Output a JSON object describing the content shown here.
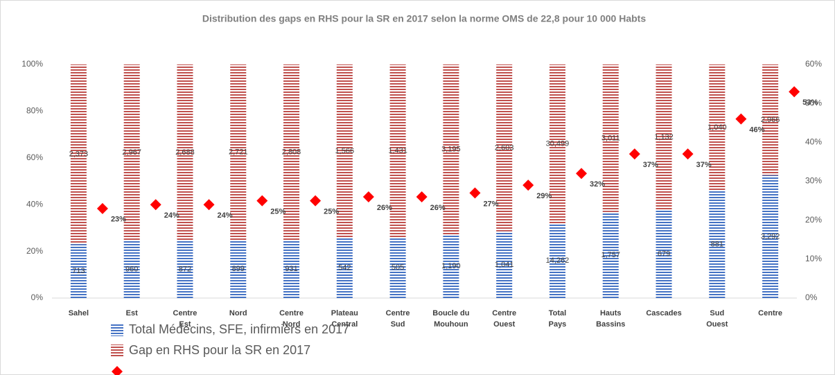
{
  "chart_data": {
    "type": "bar",
    "title": "Distribution des gaps en RHS pour la SR en 2017 selon la norme OMS de 22,8 pour 10 000 Habts",
    "categories": [
      "Sahel",
      "Est",
      "Centre Est",
      "Nord",
      "Centre Nord",
      "Plateau Central",
      "Centre Sud",
      "Boucle du Mouhoun",
      "Centre Ouest",
      "Total Pays",
      "Hauts Bassins",
      "Cascades",
      "Sud Ouest",
      "Centre"
    ],
    "series": [
      {
        "name": "Total Médecins, SFE, infirmiers en 2017",
        "color": "#4472c4",
        "values": [
          713,
          960,
          872,
          899,
          931,
          542,
          505,
          1190,
          1041,
          14262,
          1757,
          679,
          881,
          3292
        ],
        "value_labels": [
          "713",
          "960",
          "872",
          "899",
          "931",
          "542",
          "505",
          "1,190",
          "1,041",
          "14,262",
          "1,757",
          "679",
          "881",
          "3,292"
        ]
      },
      {
        "name": "Gap en RHS pour la SR en 2017",
        "color": "#c0504d",
        "values": [
          2373,
          2967,
          2688,
          2721,
          2808,
          1566,
          1431,
          3195,
          2603,
          30499,
          3011,
          1132,
          1040,
          2966
        ],
        "value_labels": [
          "2,373",
          "2,967",
          "2,688",
          "2,721",
          "2,808",
          "1,566",
          "1,431",
          "3,195",
          "2,603",
          "30,499",
          "3,011",
          "1,132",
          "1,040",
          "2,966"
        ]
      },
      {
        "color": "#ff0000",
        "axis": "y2",
        "values": [
          23,
          24,
          24,
          25,
          25,
          26,
          26,
          27,
          29,
          32,
          37,
          37,
          46,
          53
        ],
        "value_labels": [
          "23%",
          "24%",
          "24%",
          "25%",
          "25%",
          "26%",
          "26%",
          "27%",
          "29%",
          "32%",
          "37%",
          "37%",
          "46%",
          "53%"
        ]
      }
    ],
    "ylim": [
      0,
      100
    ],
    "yticks": [
      {
        "value": 0,
        "label": "0%"
      },
      {
        "value": 20,
        "label": "20%"
      },
      {
        "value": 40,
        "label": "40%"
      },
      {
        "value": 60,
        "label": "60%"
      },
      {
        "value": 80,
        "label": "80%"
      },
      {
        "value": 100,
        "label": "100%"
      }
    ],
    "y2lim": [
      0,
      60
    ],
    "y2ticks": [
      {
        "value": 0,
        "label": "0%"
      },
      {
        "value": 10,
        "label": "10%"
      },
      {
        "value": 20,
        "label": "20%"
      },
      {
        "value": 30,
        "label": "30%"
      },
      {
        "value": 40,
        "label": "40%"
      },
      {
        "value": 50,
        "label": "50%"
      },
      {
        "value": 60,
        "label": "60%"
      }
    ],
    "stacked": "percent",
    "legend": "bottom-left"
  }
}
